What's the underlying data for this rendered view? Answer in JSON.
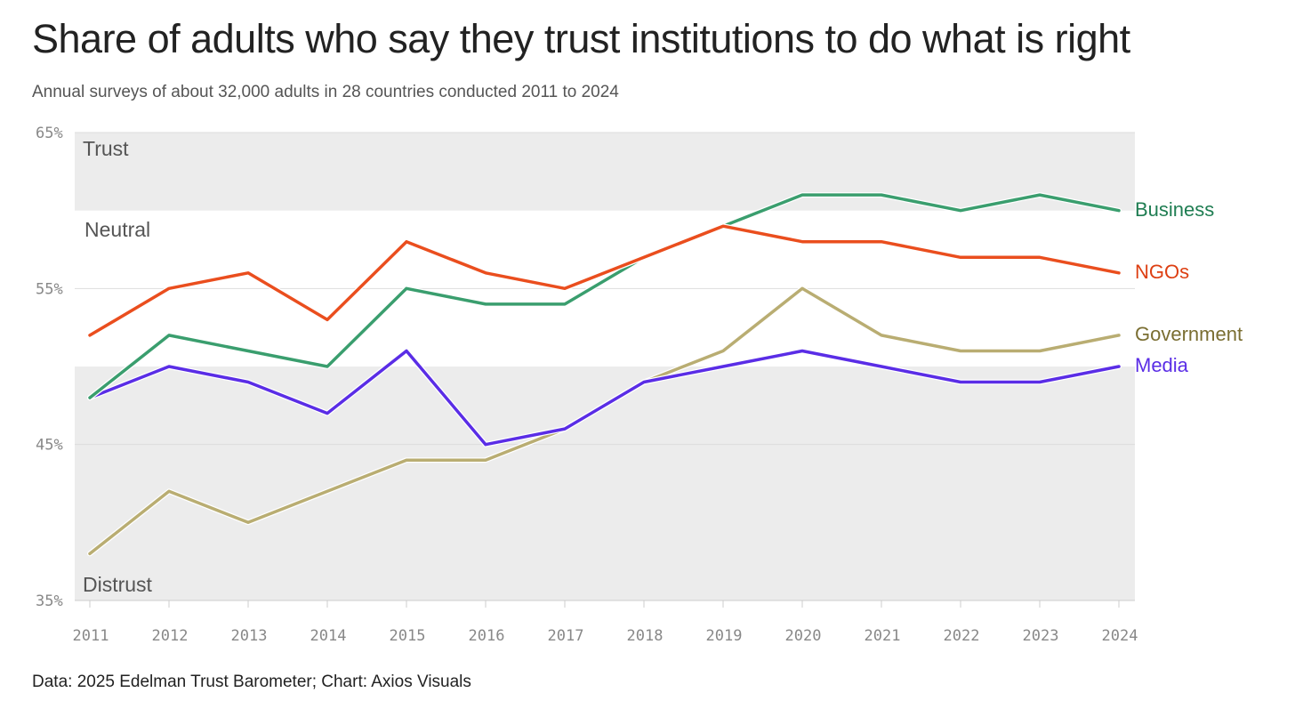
{
  "title": "Share of adults who say they trust institutions to do what is right",
  "subtitle": "Annual surveys of about 32,000 adults in 28 countries conducted 2011 to 2024",
  "footer": "Data: 2025 Edelman Trust Barometer; Chart: Axios Visuals",
  "colors": {
    "band": "#ececec",
    "grid": "#dddddd",
    "axis": "#cccccc",
    "business": "#3a9e6e",
    "ngos": "#ea4e1e",
    "government": "#b9ad72",
    "media": "#5a2de6",
    "business_label": "#1f7d52",
    "ngos_label": "#dd3f12",
    "government_label": "#7a6e32",
    "media_label": "#5a2de6"
  },
  "chart_data": {
    "type": "line",
    "title": "Share of adults who say they trust institutions to do what is right",
    "xlabel": "",
    "ylabel": "",
    "ylim": [
      35,
      65
    ],
    "y_ticks": [
      {
        "value": 65,
        "label": "65%"
      },
      {
        "value": 55,
        "label": "55%"
      },
      {
        "value": 45,
        "label": "45%"
      },
      {
        "value": 35,
        "label": "35%"
      }
    ],
    "x": [
      "2011",
      "2012",
      "2013",
      "2014",
      "2015",
      "2016",
      "2017",
      "2018",
      "2019",
      "2020",
      "2021",
      "2022",
      "2023",
      "2024"
    ],
    "bands": [
      {
        "name": "trust",
        "label": "Trust",
        "from": 60,
        "to": 65
      },
      {
        "name": "neutral",
        "label": "Neutral",
        "from": 50,
        "to": 60
      },
      {
        "name": "distrust",
        "label": "Distrust",
        "from": 35,
        "to": 50
      }
    ],
    "series": [
      {
        "name": "Government",
        "key": "government",
        "values": [
          38,
          42,
          40,
          42,
          44,
          44,
          46,
          49,
          51,
          55,
          52,
          51,
          51,
          52
        ]
      },
      {
        "name": "Media",
        "key": "media",
        "values": [
          48,
          50,
          49,
          47,
          51,
          45,
          46,
          49,
          50,
          51,
          50,
          49,
          49,
          50
        ]
      },
      {
        "name": "Business",
        "key": "business",
        "values": [
          48,
          52,
          51,
          50,
          55,
          54,
          54,
          57,
          59,
          61,
          61,
          60,
          61,
          60
        ]
      },
      {
        "name": "NGOs",
        "key": "ngos",
        "values": [
          52,
          55,
          56,
          53,
          58,
          56,
          55,
          57,
          59,
          58,
          58,
          57,
          57,
          56
        ]
      }
    ]
  }
}
